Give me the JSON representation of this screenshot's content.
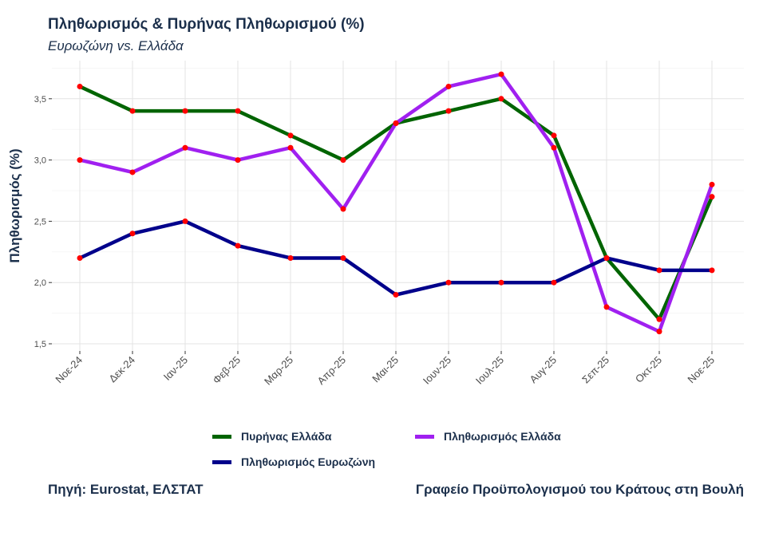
{
  "chart_data": {
    "type": "line",
    "title": "Πληθωρισμός & Πυρήνας Πληθωρισμού (%)",
    "subtitle": "Ευρωζώνη vs. Ελλάδα",
    "xlabel": "",
    "ylabel": "Πληθωρισμός (%)",
    "categories": [
      "Νοε-24",
      "Δεκ-24",
      "Ιαν-25",
      "Φεβ-25",
      "Μαρ-25",
      "Απρ-25",
      "Μαι-25",
      "Ιουν-25",
      "Ιουλ-25",
      "Αυγ-25",
      "Σεπ-25",
      "Οκτ-25",
      "Νοε-25"
    ],
    "ylim": [
      1.4,
      3.8
    ],
    "yticks": [
      1.5,
      2.0,
      2.5,
      3.0,
      3.5
    ],
    "ytick_labels": [
      "1,5",
      "2,0",
      "2,5",
      "3,0",
      "3,5"
    ],
    "grid": true,
    "legend_position": "bottom",
    "marker_color": "#ff0000",
    "series": [
      {
        "name": "Πυρήνας Ελλάδα",
        "color": "#006400",
        "values": [
          3.6,
          3.4,
          3.4,
          3.4,
          3.2,
          3.0,
          3.3,
          3.4,
          3.5,
          3.2,
          2.2,
          1.7,
          2.7
        ]
      },
      {
        "name": "Πληθωρισμός Ελλάδα",
        "color": "#a020f0",
        "values": [
          3.0,
          2.9,
          3.1,
          3.0,
          3.1,
          2.6,
          3.3,
          3.6,
          3.7,
          3.1,
          1.8,
          1.6,
          2.8
        ]
      },
      {
        "name": "Πληθωρισμός Ευρωζώνη",
        "color": "#00008b",
        "values": [
          2.2,
          2.4,
          2.5,
          2.3,
          2.2,
          2.2,
          1.9,
          2.0,
          2.0,
          2.0,
          2.2,
          2.1,
          2.1
        ]
      }
    ]
  },
  "footer": {
    "source": "Πηγή: Eurostat, ΕΛΣΤΑΤ",
    "credit": "Γραφείο Προϋπολογισμού του Κράτους στη Βουλή"
  }
}
